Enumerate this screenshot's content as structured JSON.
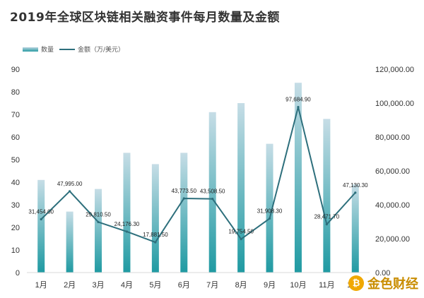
{
  "title": "2019年全球区块链相关融资事件每月数量及金额",
  "brand": "金色财经",
  "chart_data": {
    "type": "bar",
    "categories": [
      "1月",
      "2月",
      "3月",
      "4月",
      "5月",
      "6月",
      "7月",
      "8月",
      "9月",
      "10月",
      "11月",
      "12月"
    ],
    "series": [
      {
        "name": "数量",
        "type": "bar",
        "axis": "left",
        "values": [
          41,
          27,
          37,
          53,
          48,
          53,
          71,
          75,
          57,
          84,
          68,
          39
        ]
      },
      {
        "name": "金额（万/美元）",
        "type": "line",
        "axis": "right",
        "values": [
          31454.0,
          47995.0,
          29810.5,
          24176.3,
          17881.5,
          43773.5,
          43508.5,
          19754.5,
          31908.3,
          97684.9,
          28471.7,
          47130.3
        ],
        "labels": [
          "31,454.00",
          "47,995.00",
          "29,810.50",
          "24,176.30",
          "17,881.50",
          "43,773.50",
          "43,508.50",
          "19,754.50",
          "31,908.30",
          "97,684.90",
          "28,471.70",
          "47,130.30"
        ]
      }
    ],
    "y_left": {
      "min": 0,
      "max": 90,
      "ticks": [
        "0",
        "10",
        "20",
        "30",
        "40",
        "50",
        "60",
        "70",
        "80",
        "90"
      ]
    },
    "y_right": {
      "min": 0,
      "max": 120000,
      "ticks": [
        "0.00",
        "20,000.00",
        "40,000.00",
        "60,000.00",
        "80,000.00",
        "100,000.00",
        "120,000.00"
      ]
    },
    "legend_position": "top-left",
    "grid": false,
    "colors": {
      "bar_top": "#c6dde6",
      "bar_bottom": "#1f9aa2",
      "line": "#2d6f7c"
    }
  }
}
